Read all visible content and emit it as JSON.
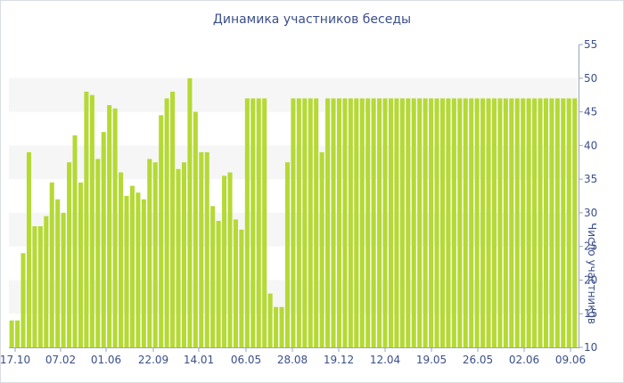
{
  "chart_data": {
    "type": "bar",
    "title": "Динамика участников беседы",
    "xlabel": "",
    "ylabel": "Число участников",
    "ylim": [
      10,
      55
    ],
    "yticks": [
      10,
      15,
      20,
      25,
      30,
      35,
      40,
      45,
      50,
      55
    ],
    "xtick_labels": [
      "17.10",
      "07.02",
      "01.06",
      "22.09",
      "14.01",
      "06.05",
      "28.08",
      "19.12",
      "12.04",
      "19.05",
      "26.05",
      "02.06",
      "09.06"
    ],
    "grid": "alternating horizontal bands",
    "bar_color": "#b5d935",
    "values": [
      14,
      14,
      24,
      39,
      28,
      28,
      29.5,
      34.5,
      32,
      30,
      37.5,
      41.5,
      34.5,
      48,
      47.5,
      38,
      42,
      46,
      45.5,
      36,
      32.5,
      34,
      33,
      32,
      38,
      37.5,
      44.5,
      47,
      48,
      36.5,
      37.5,
      50,
      45,
      39,
      39,
      31,
      28.8,
      35.5,
      36,
      29,
      27.5,
      47,
      47,
      47,
      47,
      18,
      16,
      16,
      37.5,
      47,
      47,
      47,
      47,
      47,
      39,
      47,
      47,
      47,
      47,
      47,
      47,
      47,
      47,
      47,
      47,
      47,
      47,
      47,
      47,
      47,
      47,
      47,
      47,
      47,
      47,
      47,
      47,
      47,
      47,
      47,
      47,
      47,
      47,
      47,
      47,
      47,
      47,
      47,
      47,
      47,
      47,
      47,
      47,
      47,
      47,
      47,
      47,
      47,
      47
    ]
  }
}
